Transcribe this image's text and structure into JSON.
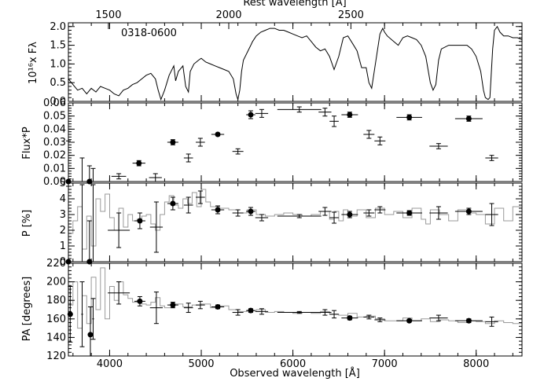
{
  "chart_data": [
    {
      "type": "line",
      "object_label": "0318-0600",
      "ylabel": "10¹⁶x Fλ",
      "top_axis_label": "Rest wavelength [Å]",
      "top_ticks": [
        "1500",
        "2000",
        "2500"
      ],
      "top_tick_obs_positions": [
        3987,
        5300,
        6633
      ],
      "xlim": [
        3550,
        8500
      ],
      "ylim": [
        0,
        2.1
      ],
      "yticks": [
        "0.0",
        "0.5",
        "1.0",
        "1.5",
        "2.0"
      ],
      "yticks_values": [
        0,
        0.5,
        1.0,
        1.5,
        2.0
      ],
      "x": [
        3550,
        3600,
        3650,
        3700,
        3750,
        3800,
        3850,
        3900,
        3950,
        4000,
        4050,
        4100,
        4150,
        4200,
        4250,
        4300,
        4350,
        4400,
        4450,
        4500,
        4530,
        4560,
        4600,
        4650,
        4700,
        4720,
        4750,
        4800,
        4830,
        4860,
        4880,
        4920,
        4970,
        5000,
        5050,
        5100,
        5150,
        5200,
        5250,
        5300,
        5350,
        5380,
        5400,
        5420,
        5440,
        5460,
        5500,
        5540,
        5560,
        5600,
        5650,
        5700,
        5750,
        5800,
        5850,
        5900,
        5950,
        6000,
        6050,
        6100,
        6150,
        6200,
        6250,
        6300,
        6350,
        6400,
        6450,
        6500,
        6550,
        6600,
        6650,
        6700,
        6750,
        6800,
        6830,
        6860,
        6900,
        6950,
        6980,
        7000,
        7030,
        7100,
        7150,
        7200,
        7250,
        7300,
        7350,
        7400,
        7450,
        7500,
        7530,
        7560,
        7590,
        7620,
        7700,
        7800,
        7900,
        7950,
        8000,
        8050,
        8080,
        8100,
        8130,
        8150,
        8180,
        8200,
        8230,
        8260,
        8300,
        8350,
        8400,
        8450,
        8500
      ],
      "y": [
        0.6,
        0.45,
        0.3,
        0.35,
        0.2,
        0.35,
        0.25,
        0.4,
        0.35,
        0.3,
        0.2,
        0.15,
        0.3,
        0.35,
        0.45,
        0.5,
        0.6,
        0.7,
        0.75,
        0.6,
        0.3,
        0.05,
        0.3,
        0.7,
        0.95,
        0.55,
        0.8,
        0.95,
        0.4,
        0.25,
        0.8,
        1.0,
        1.1,
        1.15,
        1.05,
        1.0,
        0.95,
        0.9,
        0.85,
        0.8,
        0.6,
        0.2,
        0.05,
        0.3,
        0.8,
        1.1,
        1.3,
        1.5,
        1.6,
        1.75,
        1.85,
        1.9,
        1.95,
        1.95,
        1.9,
        1.9,
        1.85,
        1.8,
        1.75,
        1.7,
        1.75,
        1.6,
        1.45,
        1.35,
        1.4,
        1.2,
        0.85,
        1.2,
        1.7,
        1.75,
        1.55,
        1.35,
        0.9,
        0.9,
        0.5,
        0.35,
        1.0,
        1.8,
        1.95,
        1.85,
        1.75,
        1.6,
        1.5,
        1.7,
        1.75,
        1.7,
        1.65,
        1.5,
        1.2,
        0.5,
        0.3,
        0.45,
        1.1,
        1.4,
        1.5,
        1.5,
        1.5,
        1.4,
        1.2,
        0.8,
        0.3,
        0.1,
        0.05,
        0.1,
        1.4,
        1.9,
        2.0,
        1.85,
        1.75,
        1.75,
        1.7,
        1.7,
        1.65
      ]
    },
    {
      "type": "scatter",
      "ylabel": "Flux*P",
      "xlim": [
        3550,
        8500
      ],
      "ylim": [
        0,
        0.06
      ],
      "yticks": [
        "0.00",
        "0.01",
        "0.02",
        "0.03",
        "0.04",
        "0.05",
        "0.06"
      ],
      "yticks_values": [
        0,
        0.01,
        0.02,
        0.03,
        0.04,
        0.05,
        0.06
      ],
      "series": [
        {
          "name": "filled",
          "points": [
            {
              "x": 3550,
              "y": 0.0,
              "xerr": 10,
              "yerr": 0.031
            },
            {
              "x": 3780,
              "y": 0.0,
              "xerr": 10,
              "yerr": 0.012
            },
            {
              "x": 4320,
              "y": 0.014,
              "xerr": 70,
              "yerr": 0.002
            },
            {
              "x": 4690,
              "y": 0.03,
              "xerr": 60,
              "yerr": 0.002
            },
            {
              "x": 5180,
              "y": 0.036,
              "xerr": 70,
              "yerr": 0.001
            },
            {
              "x": 5540,
              "y": 0.051,
              "xerr": 50,
              "yerr": 0.003
            },
            {
              "x": 6620,
              "y": 0.051,
              "xerr": 90,
              "yerr": 0.002
            },
            {
              "x": 7270,
              "y": 0.049,
              "xerr": 140,
              "yerr": 0.002
            },
            {
              "x": 7920,
              "y": 0.048,
              "xerr": 150,
              "yerr": 0.002
            }
          ]
        },
        {
          "name": "open",
          "points": [
            {
              "x": 3700,
              "y": 0.0,
              "xerr": 10,
              "yerr": 0.018
            },
            {
              "x": 3820,
              "y": 0.0,
              "xerr": 10,
              "yerr": 0.01
            },
            {
              "x": 4100,
              "y": 0.004,
              "xerr": 80,
              "yerr": 0.002
            },
            {
              "x": 4500,
              "y": 0.003,
              "xerr": 70,
              "yerr": 0.003
            },
            {
              "x": 4860,
              "y": 0.018,
              "xerr": 50,
              "yerr": 0.003
            },
            {
              "x": 4990,
              "y": 0.03,
              "xerr": 50,
              "yerr": 0.003
            },
            {
              "x": 5400,
              "y": 0.023,
              "xerr": 60,
              "yerr": 0.002
            },
            {
              "x": 5660,
              "y": 0.052,
              "xerr": 70,
              "yerr": 0.003
            },
            {
              "x": 6070,
              "y": 0.055,
              "xerr": 240,
              "yerr": 0.002
            },
            {
              "x": 6350,
              "y": 0.053,
              "xerr": 70,
              "yerr": 0.003
            },
            {
              "x": 6450,
              "y": 0.046,
              "xerr": 50,
              "yerr": 0.004
            },
            {
              "x": 6830,
              "y": 0.036,
              "xerr": 60,
              "yerr": 0.003
            },
            {
              "x": 6950,
              "y": 0.031,
              "xerr": 60,
              "yerr": 0.003
            },
            {
              "x": 7590,
              "y": 0.027,
              "xerr": 100,
              "yerr": 0.002
            },
            {
              "x": 8170,
              "y": 0.018,
              "xerr": 70,
              "yerr": 0.002
            }
          ]
        }
      ]
    },
    {
      "type": "scatter",
      "ylabel": "P [%]",
      "xlim": [
        3550,
        8500
      ],
      "ylim": [
        0,
        5
      ],
      "yticks": [
        "0",
        "1",
        "2",
        "3",
        "4",
        "5"
      ],
      "yticks_values": [
        0,
        1,
        2,
        3,
        4,
        5
      ],
      "series": [
        {
          "name": "filled",
          "points": [
            {
              "x": 3550,
              "y": 0.0,
              "xerr": 10,
              "yerr": 4.8
            },
            {
              "x": 3780,
              "y": 0.0,
              "xerr": 10,
              "yerr": 2.6
            },
            {
              "x": 4330,
              "y": 2.6,
              "xerr": 60,
              "yerr": 0.5
            },
            {
              "x": 4690,
              "y": 3.7,
              "xerr": 60,
              "yerr": 0.4
            },
            {
              "x": 5180,
              "y": 3.3,
              "xerr": 70,
              "yerr": 0.25
            },
            {
              "x": 5540,
              "y": 3.2,
              "xerr": 50,
              "yerr": 0.25
            },
            {
              "x": 6620,
              "y": 3.0,
              "xerr": 90,
              "yerr": 0.2
            },
            {
              "x": 7270,
              "y": 3.1,
              "xerr": 140,
              "yerr": 0.15
            },
            {
              "x": 7920,
              "y": 3.2,
              "xerr": 150,
              "yerr": 0.2
            }
          ]
        },
        {
          "name": "open",
          "points": [
            {
              "x": 3700,
              "y": 0.0,
              "xerr": 10,
              "yerr": 4.9
            },
            {
              "x": 3820,
              "y": 0.0,
              "xerr": 10,
              "yerr": 4.9
            },
            {
              "x": 4100,
              "y": 2.0,
              "xerr": 120,
              "yerr": 1.1
            },
            {
              "x": 4510,
              "y": 2.2,
              "xerr": 70,
              "yerr": 1.6
            },
            {
              "x": 4860,
              "y": 3.6,
              "xerr": 50,
              "yerr": 0.5
            },
            {
              "x": 4990,
              "y": 4.1,
              "xerr": 50,
              "yerr": 0.4
            },
            {
              "x": 5400,
              "y": 3.1,
              "xerr": 60,
              "yerr": 0.2
            },
            {
              "x": 5660,
              "y": 2.8,
              "xerr": 70,
              "yerr": 0.2
            },
            {
              "x": 6070,
              "y": 2.9,
              "xerr": 240,
              "yerr": 0.1
            },
            {
              "x": 6350,
              "y": 3.2,
              "xerr": 70,
              "yerr": 0.25
            },
            {
              "x": 6450,
              "y": 2.8,
              "xerr": 50,
              "yerr": 0.35
            },
            {
              "x": 6830,
              "y": 3.1,
              "xerr": 60,
              "yerr": 0.2
            },
            {
              "x": 6950,
              "y": 3.3,
              "xerr": 60,
              "yerr": 0.2
            },
            {
              "x": 7590,
              "y": 3.1,
              "xerr": 100,
              "yerr": 0.4
            },
            {
              "x": 8170,
              "y": 3.0,
              "xerr": 70,
              "yerr": 0.7
            }
          ]
        }
      ],
      "step_x": [
        3550,
        3600,
        3650,
        3700,
        3750,
        3800,
        3850,
        3900,
        3950,
        4000,
        4050,
        4100,
        4150,
        4200,
        4250,
        4300,
        4350,
        4400,
        4450,
        4500,
        4550,
        4600,
        4650,
        4700,
        4750,
        4800,
        4850,
        4900,
        4950,
        5000,
        5050,
        5100,
        5200,
        5300,
        5400,
        5500,
        5600,
        5700,
        5800,
        5900,
        6000,
        6100,
        6200,
        6300,
        6400,
        6450,
        6500,
        6550,
        6600,
        6700,
        6800,
        6900,
        7000,
        7100,
        7200,
        7300,
        7400,
        7450,
        7500,
        7600,
        7700,
        7800,
        7900,
        8000,
        8100,
        8200,
        8300,
        8400,
        8500
      ],
      "step_y": [
        1.8,
        2.6,
        3.5,
        0.8,
        2.9,
        1.0,
        4.0,
        3.2,
        4.3,
        2.8,
        2.0,
        3.4,
        2.2,
        3.0,
        2.6,
        2.7,
        2.9,
        3.0,
        2.4,
        2.0,
        3.0,
        3.8,
        4.2,
        3.6,
        3.4,
        4.0,
        3.7,
        4.4,
        3.5,
        4.6,
        3.8,
        3.5,
        3.4,
        3.3,
        3.1,
        3.3,
        3.0,
        2.9,
        3.0,
        3.1,
        3.0,
        2.9,
        3.0,
        3.2,
        2.7,
        3.2,
        2.6,
        3.3,
        2.9,
        3.3,
        2.8,
        3.4,
        3.0,
        3.2,
        2.8,
        3.4,
        2.7,
        2.4,
        3.3,
        3.0,
        2.6,
        3.3,
        3.1,
        3.0,
        2.4,
        3.4,
        2.6,
        3.5,
        3.2
      ]
    },
    {
      "type": "scatter",
      "ylabel": "PA [degrees]",
      "xlabel": "Observed wavelength [Å]",
      "xlim": [
        3550,
        8500
      ],
      "ylim": [
        120,
        220
      ],
      "xticks": [
        "4000",
        "5000",
        "6000",
        "7000",
        "8000"
      ],
      "xticks_values": [
        4000,
        5000,
        6000,
        7000,
        8000
      ],
      "yticks": [
        "120",
        "140",
        "160",
        "180",
        "200",
        "220"
      ],
      "yticks_values": [
        120,
        140,
        160,
        180,
        200,
        220
      ],
      "series": [
        {
          "name": "filled",
          "points": [
            {
              "x": 3570,
              "y": 165,
              "xerr": 10,
              "yerr": 30
            },
            {
              "x": 3790,
              "y": 143,
              "xerr": 10,
              "yerr": 30
            },
            {
              "x": 4330,
              "y": 179,
              "xerr": 60,
              "yerr": 5
            },
            {
              "x": 4690,
              "y": 175,
              "xerr": 60,
              "yerr": 3
            },
            {
              "x": 5180,
              "y": 173,
              "xerr": 70,
              "yerr": 2
            },
            {
              "x": 5540,
              "y": 169,
              "xerr": 50,
              "yerr": 2
            },
            {
              "x": 6620,
              "y": 161,
              "xerr": 90,
              "yerr": 2
            },
            {
              "x": 7270,
              "y": 158,
              "xerr": 140,
              "yerr": 1.5
            },
            {
              "x": 7920,
              "y": 158,
              "xerr": 150,
              "yerr": 2
            }
          ]
        },
        {
          "name": "open",
          "points": [
            {
              "x": 3700,
              "y": 165,
              "xerr": 10,
              "yerr": 35
            },
            {
              "x": 3820,
              "y": 160,
              "xerr": 10,
              "yerr": 22
            },
            {
              "x": 4100,
              "y": 188,
              "xerr": 120,
              "yerr": 12
            },
            {
              "x": 4510,
              "y": 172,
              "xerr": 70,
              "yerr": 17
            },
            {
              "x": 4860,
              "y": 172,
              "xerr": 50,
              "yerr": 5
            },
            {
              "x": 4990,
              "y": 175,
              "xerr": 50,
              "yerr": 4
            },
            {
              "x": 5400,
              "y": 167,
              "xerr": 60,
              "yerr": 3
            },
            {
              "x": 5660,
              "y": 168,
              "xerr": 70,
              "yerr": 3
            },
            {
              "x": 6070,
              "y": 167,
              "xerr": 240,
              "yerr": 1
            },
            {
              "x": 6350,
              "y": 167,
              "xerr": 70,
              "yerr": 3
            },
            {
              "x": 6450,
              "y": 165,
              "xerr": 50,
              "yerr": 4
            },
            {
              "x": 6830,
              "y": 162,
              "xerr": 60,
              "yerr": 2
            },
            {
              "x": 6950,
              "y": 159,
              "xerr": 60,
              "yerr": 2
            },
            {
              "x": 7590,
              "y": 161,
              "xerr": 100,
              "yerr": 3
            },
            {
              "x": 8170,
              "y": 157,
              "xerr": 70,
              "yerr": 5
            }
          ]
        }
      ],
      "step_x": [
        3550,
        3600,
        3650,
        3700,
        3750,
        3800,
        3850,
        3900,
        3950,
        4000,
        4050,
        4100,
        4150,
        4200,
        4250,
        4300,
        4350,
        4400,
        4450,
        4500,
        4550,
        4600,
        4700,
        4800,
        4900,
        5000,
        5100,
        5200,
        5300,
        5400,
        5500,
        5600,
        5700,
        5800,
        5900,
        6000,
        6100,
        6200,
        6300,
        6400,
        6500,
        6600,
        6700,
        6800,
        6900,
        7000,
        7100,
        7200,
        7300,
        7400,
        7500,
        7600,
        7700,
        7800,
        7900,
        8000,
        8100,
        8200,
        8300,
        8400,
        8500
      ],
      "step_y": [
        175,
        200,
        150,
        185,
        155,
        205,
        170,
        215,
        160,
        195,
        180,
        200,
        186,
        182,
        178,
        180,
        176,
        175,
        178,
        183,
        174,
        172,
        176,
        173,
        175,
        176,
        172,
        174,
        170,
        168,
        169,
        170,
        167,
        168,
        167,
        166,
        167,
        166,
        168,
        165,
        164,
        166,
        162,
        163,
        160,
        158,
        158,
        161,
        158,
        160,
        157,
        159,
        158,
        156,
        158,
        157,
        155,
        158,
        156,
        155,
        154
      ]
    }
  ]
}
